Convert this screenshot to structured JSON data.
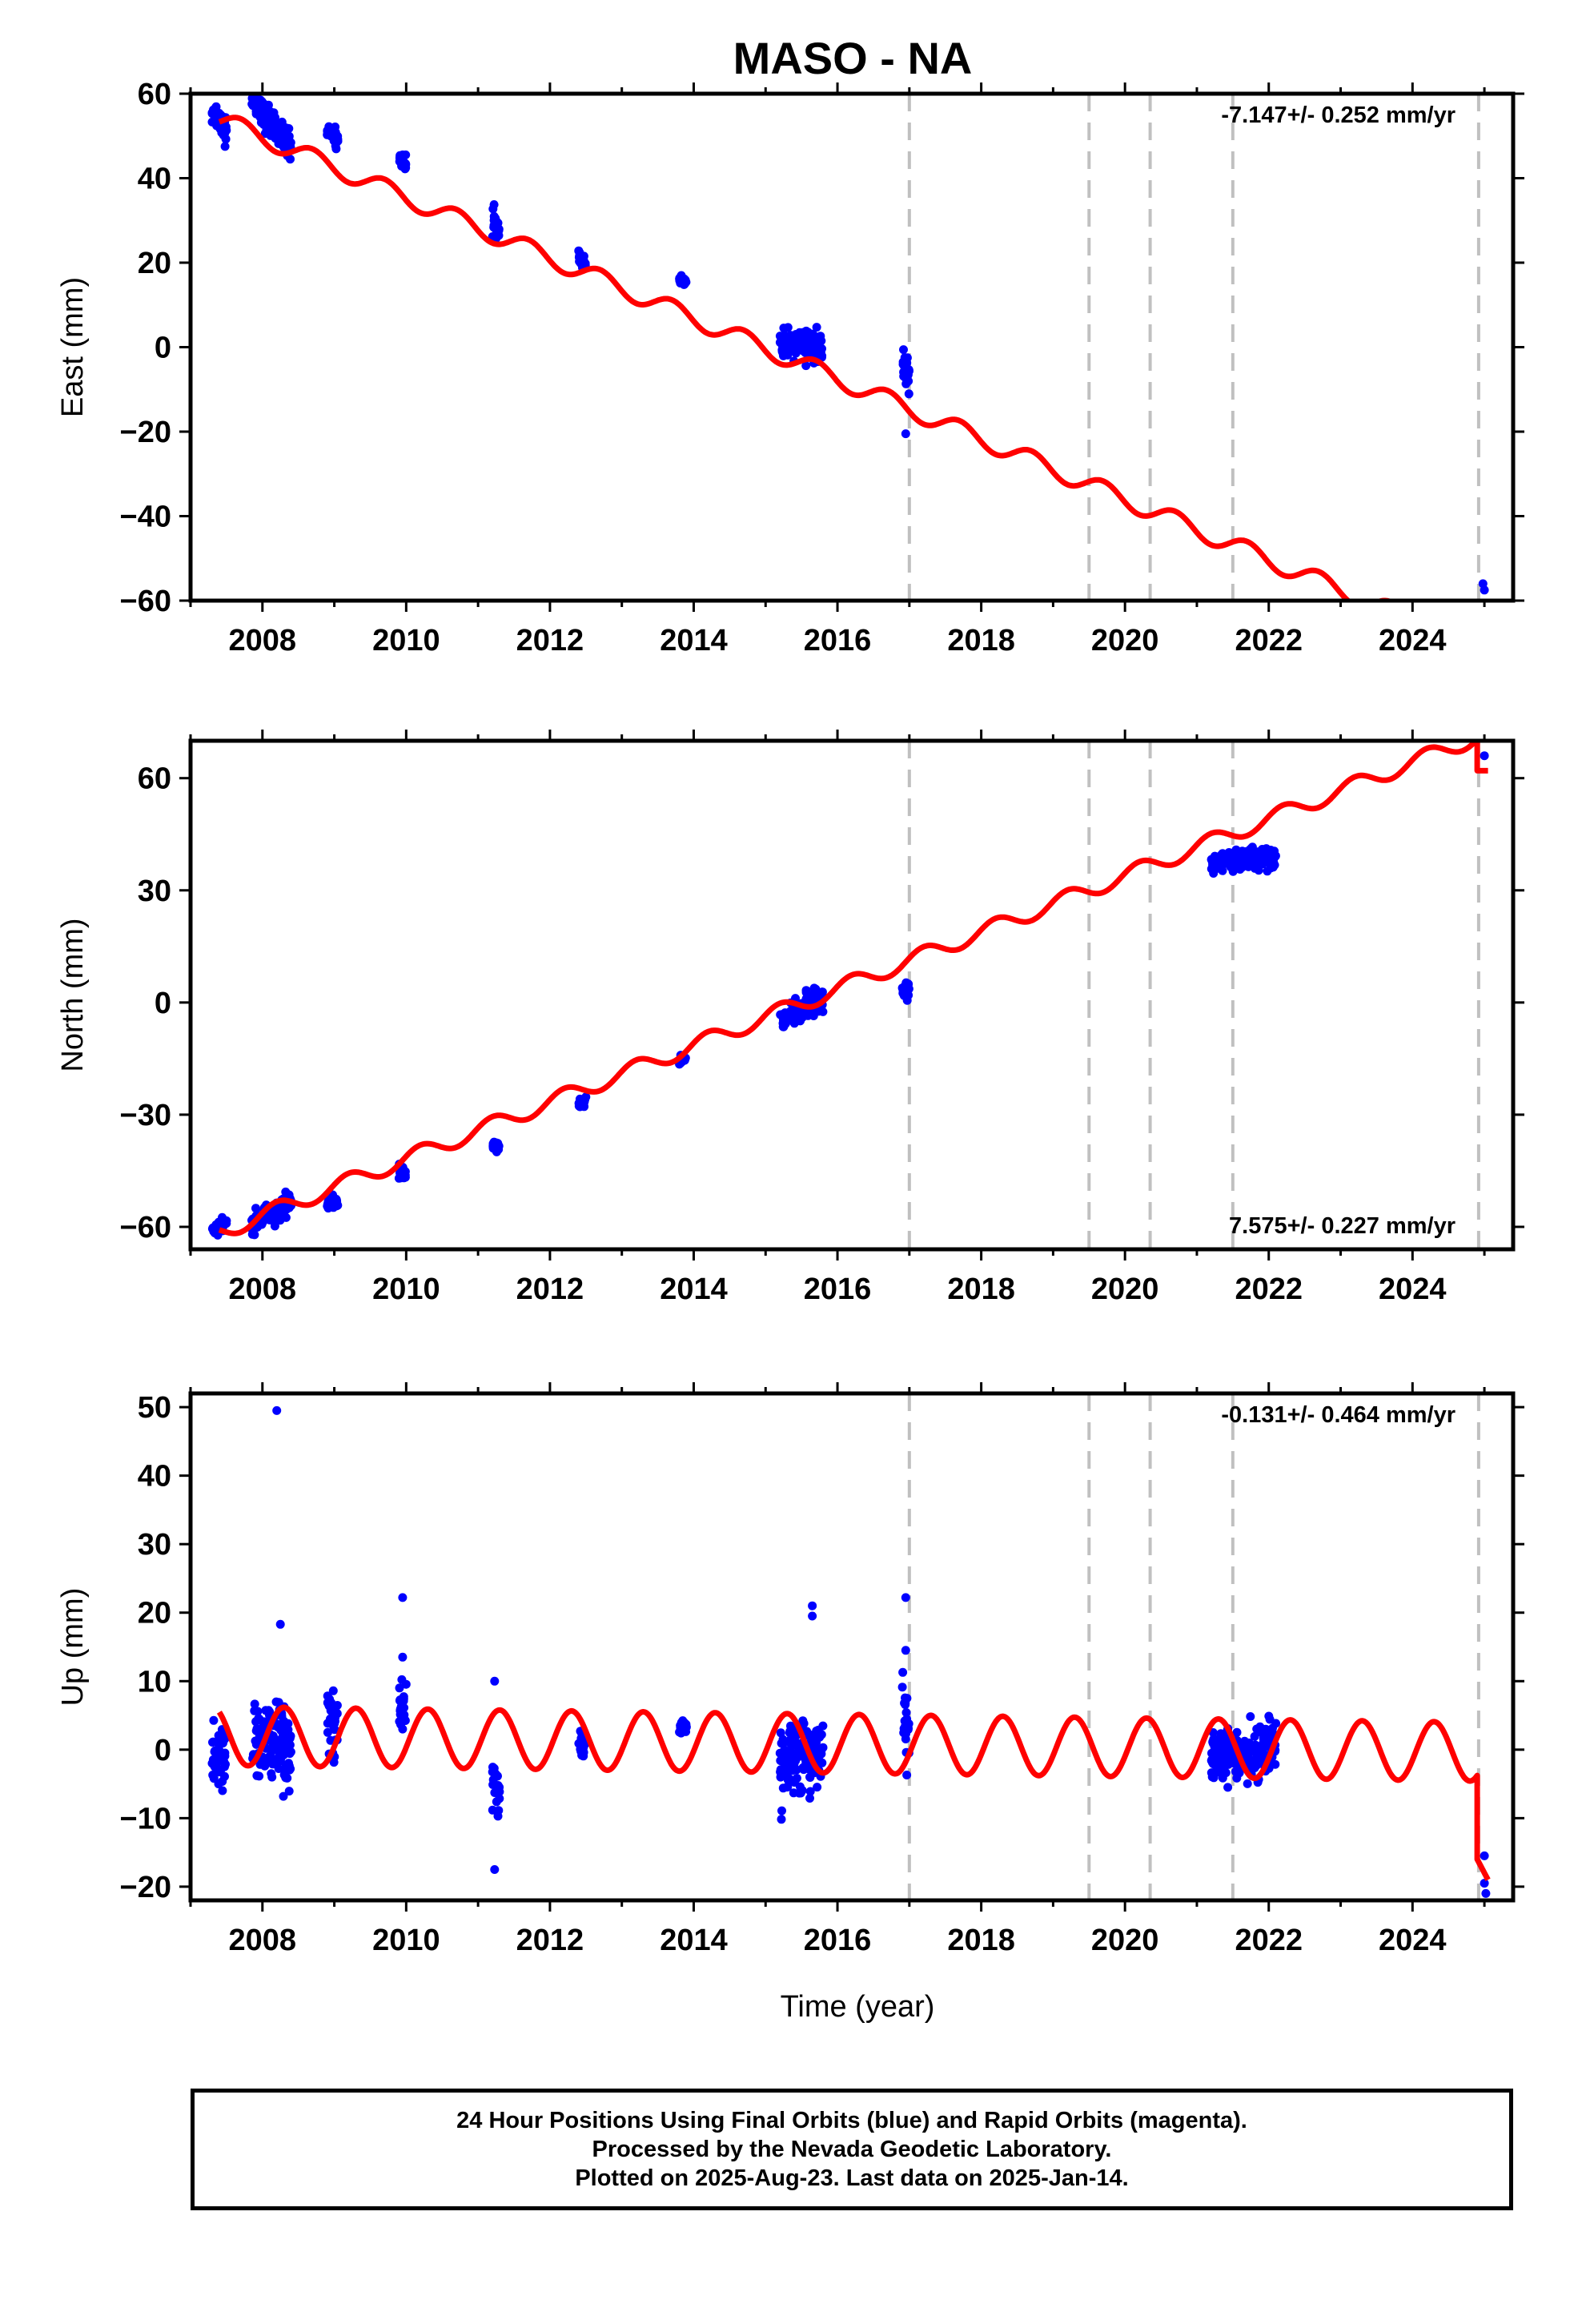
{
  "title": "MASO - NA",
  "footer": {
    "line1": "24 Hour Positions Using Final Orbits (blue) and Rapid Orbits (magenta).",
    "line2": "Processed by the Nevada Geodetic Laboratory.",
    "line3": "Plotted on 2025-Aug-23. Last data on 2025-Jan-14."
  },
  "xlabel": "Time (year)",
  "colors": {
    "data": "#0000ff",
    "model": "#ff0000",
    "event_line": "#c0c0c0"
  },
  "chart_data": [
    {
      "type": "scatter",
      "ylabel": "East (mm)",
      "rate_label": "-7.147+/- 0.252 mm/yr",
      "rate_position": "top-right",
      "xlim": [
        2007.0,
        2025.4
      ],
      "ylim": [
        -60,
        60
      ],
      "x_ticks": [
        2008,
        2010,
        2012,
        2014,
        2016,
        2018,
        2020,
        2022,
        2024
      ],
      "y_ticks": [
        -60,
        -40,
        -20,
        0,
        20,
        40,
        60
      ],
      "event_lines": [
        2017.0,
        2019.5,
        2020.35,
        2021.5,
        2024.92
      ],
      "series": [
        {
          "type": "scatter",
          "clusters": [
            {
              "x": [
                2007.3,
                2007.5
              ],
              "y": [
                56,
                52
              ],
              "spread": 3
            },
            {
              "x": [
                2007.85,
                2008.4
              ],
              "y": [
                58,
                48
              ],
              "spread": 3
            },
            {
              "x": [
                2008.9,
                2009.05
              ],
              "y": [
                52,
                49
              ],
              "spread": 2
            },
            {
              "x": [
                2009.9,
                2010.0
              ],
              "y": [
                45,
                43
              ],
              "spread": 1.5
            },
            {
              "x": [
                2011.2,
                2011.3
              ],
              "y": [
                31,
                27
              ],
              "spread": 2.5
            },
            {
              "x": [
                2012.4,
                2012.5
              ],
              "y": [
                21,
                20
              ],
              "spread": 1.2
            },
            {
              "x": [
                2013.8,
                2013.9
              ],
              "y": [
                16,
                15
              ],
              "spread": 1
            },
            {
              "x": [
                2015.2,
                2015.8
              ],
              "y": [
                1,
                0
              ],
              "spread": 3
            },
            {
              "x": [
                2016.9,
                2017.0
              ],
              "y": [
                -4,
                -7
              ],
              "spread": 3
            }
          ],
          "points": [
            [
              2007.48,
              47.5
            ],
            [
              2016.95,
              -20.5
            ],
            [
              2024.98,
              -56
            ],
            [
              2025.0,
              -57.5
            ]
          ]
        },
        {
          "type": "line",
          "name": "model",
          "segments": [
            {
              "x0": 2007.4,
              "x1": 2024.9,
              "y_start": 54,
              "slope": -7.147,
              "amplitude": 2.2,
              "phase": 0.55
            },
            {
              "x0": 2024.9,
              "x1": 2025.05,
              "y_start": -60.5,
              "slope": 0,
              "amplitude": 0,
              "phase": 0
            }
          ]
        }
      ]
    },
    {
      "type": "scatter",
      "ylabel": "North (mm)",
      "rate_label": "7.575+/- 0.227 mm/yr",
      "rate_position": "bottom-right",
      "xlim": [
        2007.0,
        2025.4
      ],
      "ylim": [
        -66,
        70
      ],
      "x_ticks": [
        2008,
        2010,
        2012,
        2014,
        2016,
        2018,
        2020,
        2022,
        2024
      ],
      "y_ticks": [
        -60,
        -30,
        0,
        30,
        60
      ],
      "event_lines": [
        2017.0,
        2019.5,
        2020.35,
        2021.5,
        2024.92
      ],
      "series": [
        {
          "type": "scatter",
          "clusters": [
            {
              "x": [
                2007.3,
                2007.5
              ],
              "y": [
                -61,
                -59
              ],
              "spread": 2
            },
            {
              "x": [
                2007.85,
                2008.4
              ],
              "y": [
                -60,
                -53
              ],
              "spread": 2.5
            },
            {
              "x": [
                2008.9,
                2009.05
              ],
              "y": [
                -54,
                -53
              ],
              "spread": 1.5
            },
            {
              "x": [
                2009.9,
                2010.0
              ],
              "y": [
                -45,
                -46
              ],
              "spread": 2
            },
            {
              "x": [
                2011.2,
                2011.3
              ],
              "y": [
                -38,
                -39
              ],
              "spread": 1.2
            },
            {
              "x": [
                2012.4,
                2012.5
              ],
              "y": [
                -27,
                -26
              ],
              "spread": 1.2
            },
            {
              "x": [
                2013.8,
                2013.9
              ],
              "y": [
                -16,
                -15
              ],
              "spread": 1
            },
            {
              "x": [
                2015.2,
                2015.8
              ],
              "y": [
                -4,
                1
              ],
              "spread": 3
            },
            {
              "x": [
                2016.9,
                2017.0
              ],
              "y": [
                3,
                4
              ],
              "spread": 2
            },
            {
              "x": [
                2021.2,
                2022.1
              ],
              "y": [
                37,
                39
              ],
              "spread": 2.5
            }
          ],
          "points": [
            [
              2025.0,
              66
            ]
          ]
        },
        {
          "type": "line",
          "name": "model",
          "segments": [
            {
              "x0": 2007.4,
              "x1": 2024.9,
              "y_start": -61.5,
              "slope": 7.575,
              "amplitude": 2.2,
              "phase": 0.05
            },
            {
              "x0": 2024.9,
              "x1": 2025.05,
              "y_start": 62,
              "slope": 0,
              "amplitude": 0,
              "phase": 0
            }
          ]
        }
      ]
    },
    {
      "type": "scatter",
      "ylabel": "Up (mm)",
      "rate_label": "-0.131+/- 0.464 mm/yr",
      "rate_position": "top-right",
      "xlim": [
        2007.0,
        2025.4
      ],
      "ylim": [
        -22,
        52
      ],
      "x_ticks": [
        2008,
        2010,
        2012,
        2014,
        2016,
        2018,
        2020,
        2022,
        2024
      ],
      "y_ticks": [
        -20,
        -10,
        0,
        10,
        20,
        30,
        40,
        50
      ],
      "event_lines": [
        2017.0,
        2019.5,
        2020.35,
        2021.5,
        2024.92
      ],
      "series": [
        {
          "type": "scatter",
          "clusters": [
            {
              "x": [
                2007.3,
                2007.5
              ],
              "y": [
                -1,
                -1
              ],
              "spread": 4.5
            },
            {
              "x": [
                2007.85,
                2008.4
              ],
              "y": [
                2,
                0
              ],
              "spread": 5
            },
            {
              "x": [
                2008.9,
                2009.05
              ],
              "y": [
                4,
                3
              ],
              "spread": 5
            },
            {
              "x": [
                2009.9,
                2010.0
              ],
              "y": [
                7,
                6
              ],
              "spread": 3
            },
            {
              "x": [
                2011.2,
                2011.3
              ],
              "y": [
                -5,
                -6
              ],
              "spread": 3
            },
            {
              "x": [
                2012.4,
                2012.5
              ],
              "y": [
                1,
                0
              ],
              "spread": 2.5
            },
            {
              "x": [
                2013.8,
                2013.9
              ],
              "y": [
                3,
                3
              ],
              "spread": 1
            },
            {
              "x": [
                2015.2,
                2015.8
              ],
              "y": [
                -2,
                0
              ],
              "spread": 4.5
            },
            {
              "x": [
                2016.9,
                2017.0
              ],
              "y": [
                5,
                4
              ],
              "spread": 5
            },
            {
              "x": [
                2021.2,
                2022.1
              ],
              "y": [
                -1,
                0
              ],
              "spread": 3.5
            }
          ],
          "points": [
            [
              2008.2,
              49.5
            ],
            [
              2008.25,
              18.3
            ],
            [
              2009.95,
              22.2
            ],
            [
              2009.95,
              13.5
            ],
            [
              2011.23,
              -17.5
            ],
            [
              2011.23,
              10
            ],
            [
              2015.65,
              21
            ],
            [
              2015.65,
              19.5
            ],
            [
              2016.95,
              22.2
            ],
            [
              2016.95,
              14.5
            ],
            [
              2025.0,
              -15.5
            ],
            [
              2025.0,
              -19.5
            ],
            [
              2025.02,
              -21
            ]
          ]
        },
        {
          "type": "line",
          "name": "model",
          "segments": [
            {
              "x0": 2007.4,
              "x1": 2024.9,
              "y_start": 2,
              "slope": -0.131,
              "amplitude": 4.3,
              "phase": 0.95
            },
            {
              "x0": 2024.9,
              "x1": 2025.05,
              "y_start": -16,
              "slope": -20,
              "amplitude": 0,
              "phase": 0
            }
          ]
        }
      ]
    }
  ]
}
